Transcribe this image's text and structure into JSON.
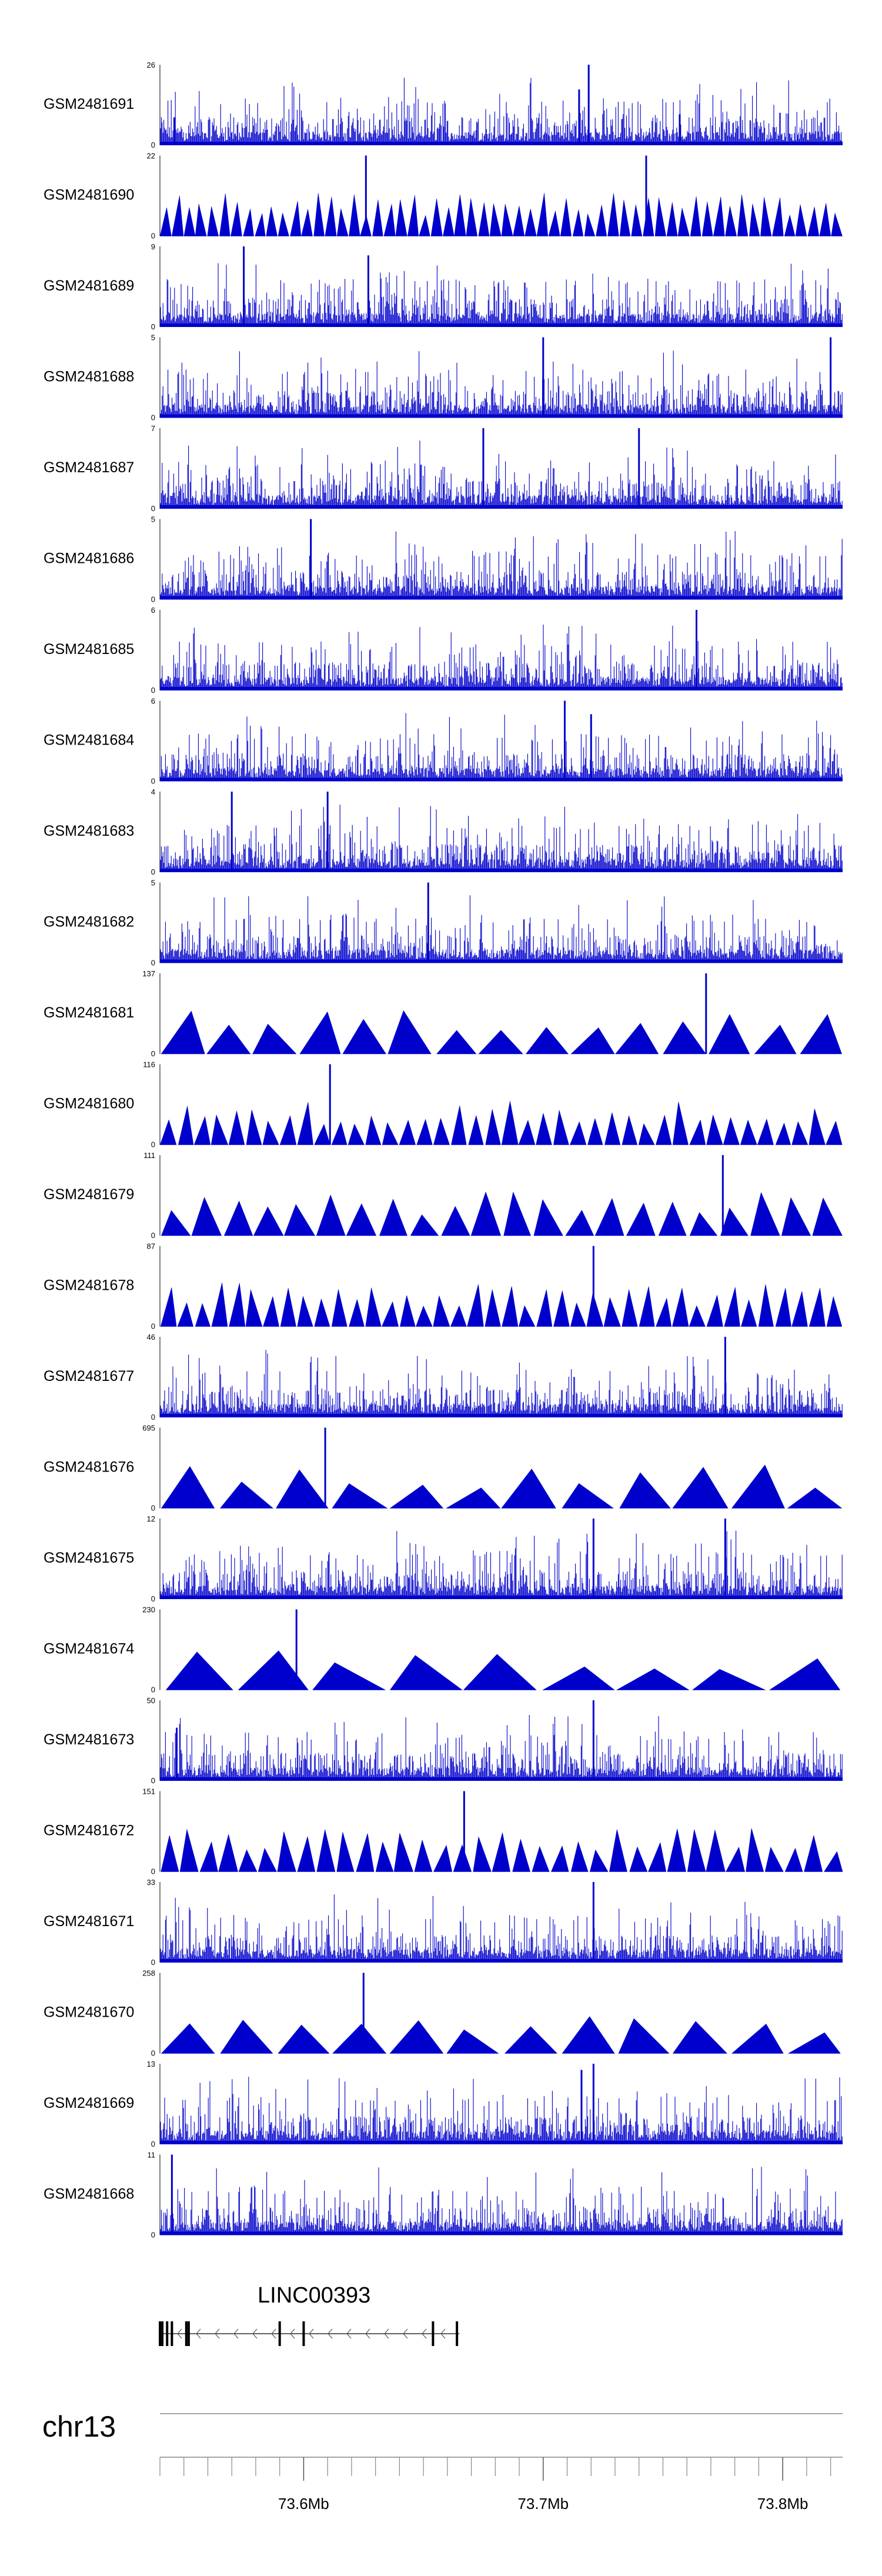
{
  "chart_data": {
    "type": "area",
    "title": "",
    "chromosome": "chr13",
    "xlim_mb": [
      73.54,
      73.825
    ],
    "x_ticks": [
      {
        "value": 73.6,
        "label": "73.6Mb"
      },
      {
        "value": 73.7,
        "label": "73.7Mb"
      },
      {
        "value": 73.8,
        "label": "73.8Mb"
      }
    ],
    "track_color": "#0000cc",
    "tracks": [
      {
        "name": "GSM2481691",
        "ymax_label": "26",
        "ymin_label": "0",
        "ymax": 26,
        "style": "dense",
        "peaks": [
          {
            "x": 73.546,
            "y": 9
          },
          {
            "x": 73.715,
            "y": 18
          },
          {
            "x": 73.719,
            "y": 26
          },
          {
            "x": 73.757,
            "y": 10
          }
        ]
      },
      {
        "name": "GSM2481690",
        "ymax_label": "22",
        "ymin_label": "0",
        "ymax": 22,
        "style": "triangles",
        "n": 58,
        "peaks": [
          {
            "x": 73.626,
            "y": 22
          },
          {
            "x": 73.743,
            "y": 22
          }
        ]
      },
      {
        "name": "GSM2481689",
        "ymax_label": "9",
        "ymin_label": "0",
        "ymax": 9,
        "style": "dense",
        "peaks": [
          {
            "x": 73.575,
            "y": 9
          },
          {
            "x": 73.627,
            "y": 8
          }
        ]
      },
      {
        "name": "GSM2481688",
        "ymax_label": "5",
        "ymin_label": "0",
        "ymax": 5,
        "style": "dense",
        "peaks": [
          {
            "x": 73.7,
            "y": 5
          },
          {
            "x": 73.82,
            "y": 5
          }
        ]
      },
      {
        "name": "GSM2481687",
        "ymax_label": "7",
        "ymin_label": "0",
        "ymax": 7,
        "style": "dense",
        "peaks": [
          {
            "x": 73.675,
            "y": 7
          },
          {
            "x": 73.74,
            "y": 7
          }
        ]
      },
      {
        "name": "GSM2481686",
        "ymax_label": "5",
        "ymin_label": "0",
        "ymax": 5,
        "style": "dense",
        "peaks": [
          {
            "x": 73.603,
            "y": 5
          }
        ]
      },
      {
        "name": "GSM2481685",
        "ymax_label": "6",
        "ymin_label": "0",
        "ymax": 6,
        "style": "dense",
        "peaks": [
          {
            "x": 73.764,
            "y": 6
          }
        ]
      },
      {
        "name": "GSM2481684",
        "ymax_label": "6",
        "ymin_label": "0",
        "ymax": 6,
        "style": "dense",
        "peaks": [
          {
            "x": 73.709,
            "y": 6
          },
          {
            "x": 73.72,
            "y": 5
          }
        ]
      },
      {
        "name": "GSM2481683",
        "ymax_label": "4",
        "ymin_label": "0",
        "ymax": 4,
        "style": "dense",
        "peaks": [
          {
            "x": 73.57,
            "y": 4
          },
          {
            "x": 73.61,
            "y": 4
          }
        ]
      },
      {
        "name": "GSM2481682",
        "ymax_label": "5",
        "ymin_label": "0",
        "ymax": 5,
        "style": "dense",
        "peaks": [
          {
            "x": 73.652,
            "y": 5
          }
        ]
      },
      {
        "name": "GSM2481681",
        "ymax_label": "137",
        "ymin_label": "0",
        "ymax": 137,
        "style": "triangles",
        "n": 15,
        "peaks": [
          {
            "x": 73.768,
            "y": 137
          }
        ]
      },
      {
        "name": "GSM2481680",
        "ymax_label": "116",
        "ymin_label": "0",
        "ymax": 116,
        "style": "triangles",
        "n": 40,
        "peaks": [
          {
            "x": 73.611,
            "y": 116
          }
        ]
      },
      {
        "name": "GSM2481679",
        "ymax_label": "111",
        "ymin_label": "0",
        "ymax": 111,
        "style": "triangles",
        "n": 22,
        "peaks": [
          {
            "x": 73.775,
            "y": 111
          }
        ]
      },
      {
        "name": "GSM2481678",
        "ymax_label": "87",
        "ymin_label": "0",
        "ymax": 87,
        "style": "triangles",
        "n": 40,
        "peaks": [
          {
            "x": 73.721,
            "y": 87
          }
        ]
      },
      {
        "name": "GSM2481677",
        "ymax_label": "46",
        "ymin_label": "0",
        "ymax": 46,
        "style": "dense",
        "peaks": [
          {
            "x": 73.776,
            "y": 46
          }
        ]
      },
      {
        "name": "GSM2481676",
        "ymax_label": "695",
        "ymin_label": "0",
        "ymax": 695,
        "style": "triangles",
        "n": 12,
        "peaks": [
          {
            "x": 73.609,
            "y": 695
          }
        ]
      },
      {
        "name": "GSM2481675",
        "ymax_label": "12",
        "ymin_label": "0",
        "ymax": 12,
        "style": "dense",
        "peaks": [
          {
            "x": 73.721,
            "y": 12
          },
          {
            "x": 73.776,
            "y": 12
          }
        ]
      },
      {
        "name": "GSM2481674",
        "ymax_label": "230",
        "ymin_label": "0",
        "ymax": 230,
        "style": "triangles",
        "n": 9,
        "peaks": [
          {
            "x": 73.597,
            "y": 230
          }
        ]
      },
      {
        "name": "GSM2481673",
        "ymax_label": "50",
        "ymin_label": "0",
        "ymax": 50,
        "style": "dense",
        "peaks": [
          {
            "x": 73.547,
            "y": 33
          },
          {
            "x": 73.721,
            "y": 50
          }
        ]
      },
      {
        "name": "GSM2481672",
        "ymax_label": "151",
        "ymin_label": "0",
        "ymax": 151,
        "style": "triangles",
        "n": 35,
        "peaks": [
          {
            "x": 73.667,
            "y": 151
          }
        ]
      },
      {
        "name": "GSM2481671",
        "ymax_label": "33",
        "ymin_label": "0",
        "ymax": 33,
        "style": "dense",
        "peaks": [
          {
            "x": 73.721,
            "y": 33
          }
        ]
      },
      {
        "name": "GSM2481670",
        "ymax_label": "258",
        "ymin_label": "0",
        "ymax": 258,
        "style": "triangles",
        "n": 12,
        "peaks": [
          {
            "x": 73.625,
            "y": 258
          }
        ]
      },
      {
        "name": "GSM2481669",
        "ymax_label": "13",
        "ymin_label": "0",
        "ymax": 13,
        "style": "dense",
        "peaks": [
          {
            "x": 73.716,
            "y": 12
          },
          {
            "x": 73.721,
            "y": 13
          }
        ]
      },
      {
        "name": "GSM2481668",
        "ymax_label": "11",
        "ymin_label": "0",
        "ymax": 11,
        "style": "dense",
        "peaks": [
          {
            "x": 73.545,
            "y": 11
          }
        ]
      }
    ],
    "gene": {
      "name": "LINC00393",
      "strand": "-",
      "start_mb": 73.54,
      "end_mb": 73.665,
      "exons_mb": [
        73.54,
        73.541,
        73.543,
        73.545,
        73.551,
        73.552,
        73.59,
        73.6,
        73.654,
        73.664
      ]
    }
  }
}
